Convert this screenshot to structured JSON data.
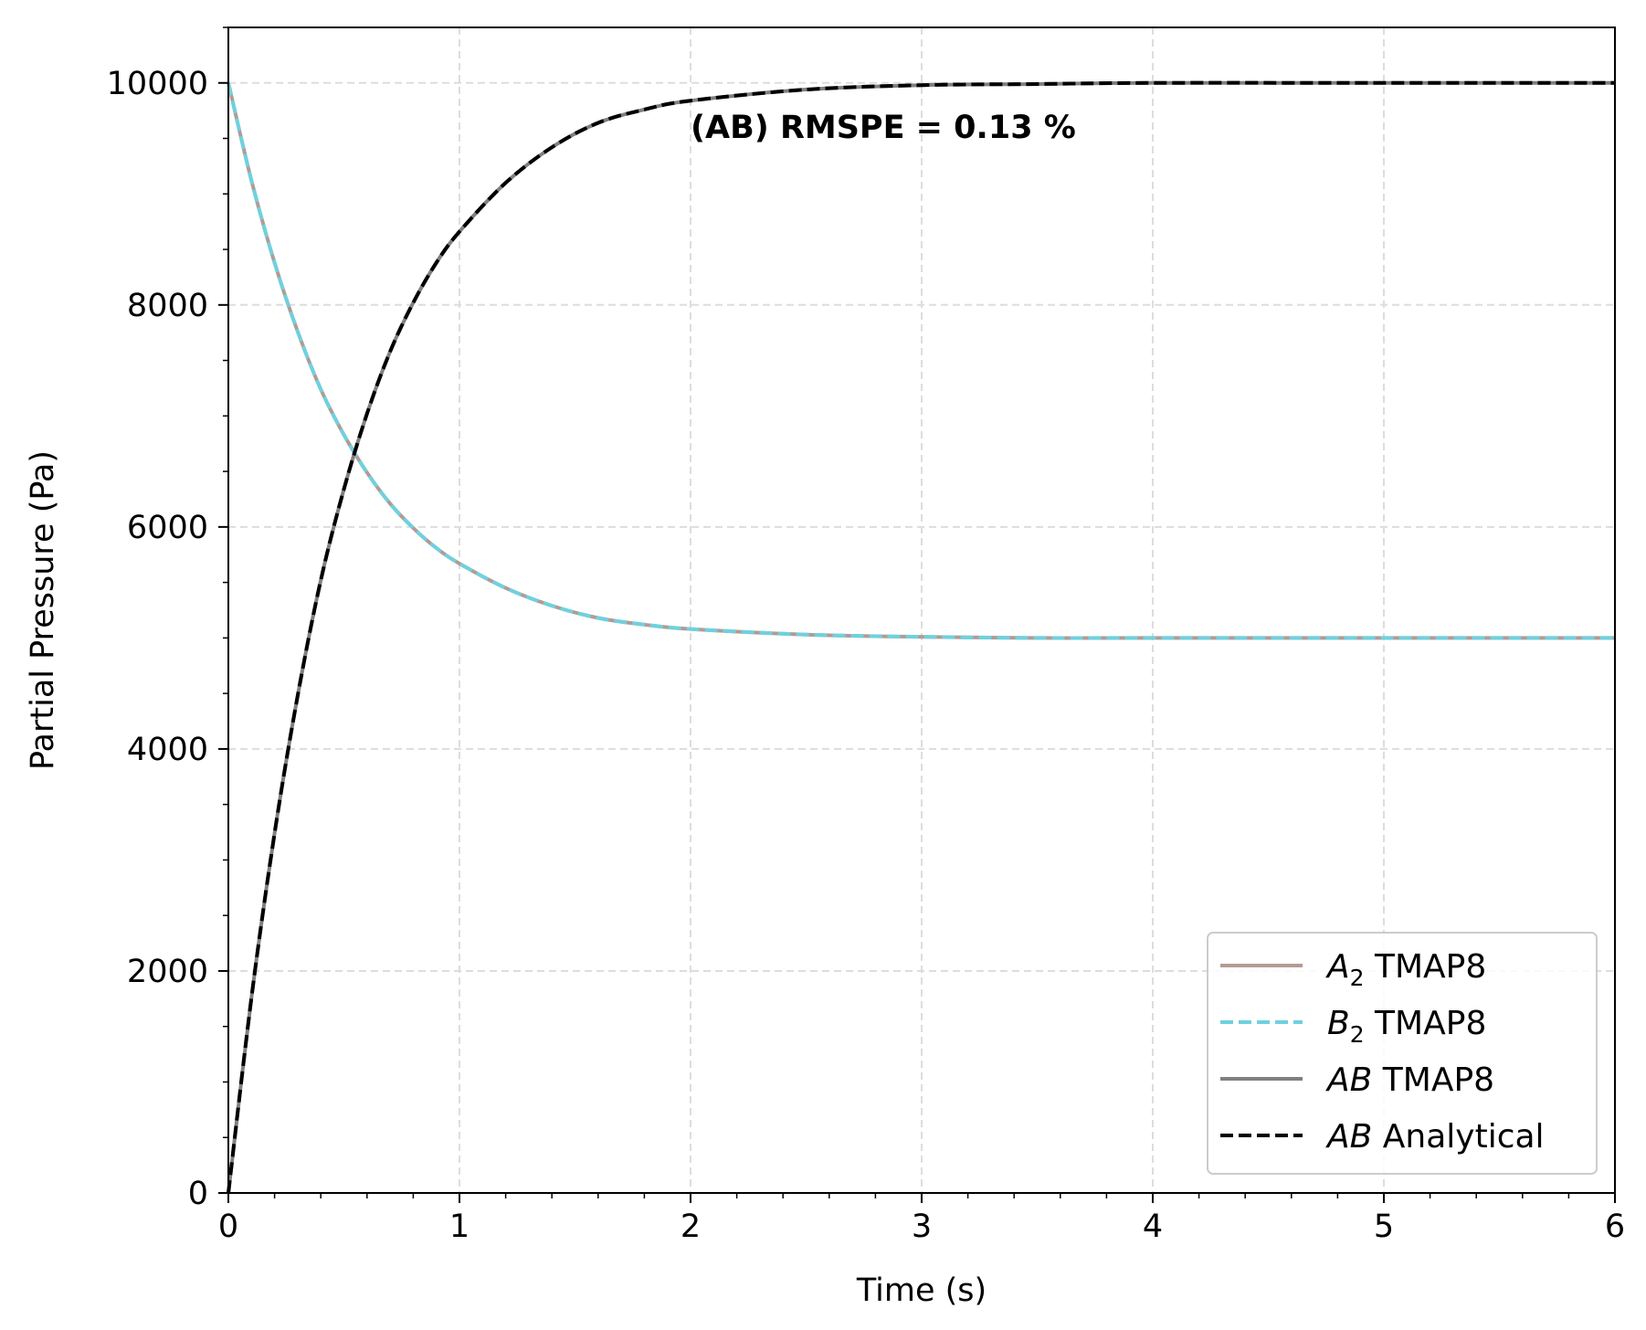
{
  "chart_data": {
    "type": "line",
    "xlabel": "Time (s)",
    "ylabel": "Partial Pressure (Pa)",
    "xlim": [
      0,
      6
    ],
    "ylim": [
      0,
      10500
    ],
    "x_ticks": [
      0,
      1,
      2,
      3,
      4,
      5,
      6
    ],
    "y_ticks": [
      0,
      2000,
      4000,
      6000,
      8000,
      10000
    ],
    "grid": true,
    "legend_position": "lower-right",
    "annotation": "(AB) RMSPE = 0.13 %",
    "x": [
      0,
      0.1,
      0.2,
      0.3,
      0.4,
      0.5,
      0.6,
      0.7,
      0.8,
      0.9,
      1.0,
      1.2,
      1.4,
      1.6,
      1.8,
      2.0,
      2.5,
      3.0,
      3.5,
      4.0,
      5.0,
      6.0
    ],
    "series": [
      {
        "name_italic": "A",
        "name_sub": "2",
        "name_rest": " TMAP8",
        "color": "#b49a94",
        "style": "solid",
        "values": [
          10000,
          9120,
          8380,
          7760,
          7240,
          6830,
          6490,
          6210,
          5990,
          5810,
          5670,
          5450,
          5290,
          5180,
          5120,
          5080,
          5030,
          5010,
          5000,
          5000,
          5000,
          5000
        ]
      },
      {
        "name_italic": "B",
        "name_sub": "2",
        "name_rest": " TMAP8",
        "color": "#6fd1de",
        "style": "dashed",
        "values": [
          10000,
          9120,
          8380,
          7760,
          7240,
          6830,
          6490,
          6210,
          5990,
          5810,
          5670,
          5450,
          5290,
          5180,
          5120,
          5080,
          5030,
          5010,
          5000,
          5000,
          5000,
          5000
        ]
      },
      {
        "name_italic": "AB",
        "name_sub": "",
        "name_rest": " TMAP8",
        "color": "#808080",
        "style": "solid",
        "values": [
          0,
          1760,
          3240,
          4480,
          5520,
          6340,
          7020,
          7580,
          8020,
          8380,
          8660,
          9100,
          9420,
          9640,
          9760,
          9840,
          9940,
          9980,
          9990,
          10000,
          10000,
          10000
        ]
      },
      {
        "name_italic": "AB",
        "name_sub": "",
        "name_rest": " Analytical",
        "color": "#000000",
        "style": "dashed",
        "values": [
          0,
          1760,
          3240,
          4480,
          5520,
          6340,
          7020,
          7580,
          8020,
          8380,
          8660,
          9100,
          9420,
          9640,
          9760,
          9840,
          9940,
          9980,
          9990,
          10000,
          10000,
          10000
        ]
      }
    ]
  }
}
